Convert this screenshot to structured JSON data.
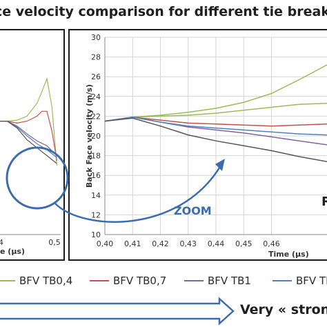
{
  "title": "ce velocity comparison for different tie break",
  "zoom_label": "ZOOM",
  "cut_label": "R",
  "strong_label": "Very « strong",
  "left_xlabel": "e (µs)",
  "right_xlabel": "Time (µs)",
  "colors": {
    "tb04": "#9bbb59",
    "tb07": "#c0504d",
    "tb1": "#8064a2",
    "tb_blue": "#4f81bd",
    "dark": "#555555",
    "arrow": "#3b6cb0"
  },
  "legend": [
    {
      "label": "BFV TB0,4",
      "color": "#9bbb59"
    },
    {
      "label": "BFV TB0,7",
      "color": "#c0504d"
    },
    {
      "label": "BFV TB1",
      "color": "#8064a2"
    },
    {
      "label": "BFV TB",
      "color": "#4f81bd"
    }
  ],
  "chart_data": [
    {
      "type": "line",
      "panel": "left",
      "xlabel": "e (µs)",
      "xtick_labels": [
        "4",
        "0,5"
      ],
      "xlim": [
        0.38,
        0.505
      ],
      "ylim": [
        10,
        30
      ],
      "series": [
        {
          "name": "BFV TB0,4",
          "x": [
            0.38,
            0.4,
            0.42,
            0.44,
            0.46,
            0.47,
            0.48,
            0.49,
            0.5
          ],
          "y": [
            21.5,
            21.5,
            21.6,
            22.0,
            23.3,
            24.5,
            25.8,
            23.0,
            17.0
          ]
        },
        {
          "name": "BFV TB0,7",
          "x": [
            0.38,
            0.4,
            0.42,
            0.44,
            0.46,
            0.47,
            0.48,
            0.49,
            0.5
          ],
          "y": [
            21.5,
            21.5,
            21.3,
            21.5,
            22.0,
            22.5,
            22.5,
            20.5,
            17.5
          ]
        },
        {
          "name": "BFV TB1",
          "x": [
            0.38,
            0.4,
            0.42,
            0.44,
            0.46,
            0.48,
            0.5
          ],
          "y": [
            21.5,
            21.5,
            21.0,
            20.2,
            19.5,
            19.0,
            18.0
          ]
        },
        {
          "name": "BFV TB",
          "x": [
            0.38,
            0.4,
            0.42,
            0.44,
            0.46,
            0.48,
            0.5
          ],
          "y": [
            21.5,
            21.5,
            20.9,
            20.0,
            19.2,
            18.6,
            17.8
          ]
        },
        {
          "name": "",
          "x": [
            0.38,
            0.4,
            0.42,
            0.44,
            0.46,
            0.48,
            0.5
          ],
          "y": [
            21.5,
            21.5,
            20.8,
            19.6,
            18.8,
            18.0,
            17.2
          ]
        }
      ]
    },
    {
      "type": "line",
      "panel": "right",
      "xlabel": "Time (µs)",
      "ylabel": "Back Face velocity (m/s)",
      "xlim": [
        0.4,
        0.48
      ],
      "ylim": [
        10,
        30
      ],
      "xticks": [
        0.4,
        0.41,
        0.42,
        0.43,
        0.44,
        0.45,
        0.46
      ],
      "xtick_labels": [
        "0,40",
        "0,41",
        "0,42",
        "0,43",
        "0,44",
        "0,45",
        "0,46"
      ],
      "yticks": [
        10,
        12,
        14,
        16,
        18,
        20,
        22,
        24,
        26,
        28,
        30
      ],
      "grid": true,
      "series": [
        {
          "name": "BFV TB0,4",
          "x": [
            0.4,
            0.41,
            0.42,
            0.43,
            0.44,
            0.45,
            0.46,
            0.47,
            0.48
          ],
          "y": [
            21.5,
            21.9,
            22.1,
            22.4,
            22.8,
            23.4,
            24.3,
            25.7,
            27.2
          ]
        },
        {
          "name": "",
          "x": [
            0.4,
            0.41,
            0.42,
            0.43,
            0.44,
            0.45,
            0.46,
            0.47,
            0.48
          ],
          "y": [
            21.5,
            21.9,
            22.0,
            22.1,
            22.3,
            22.6,
            22.9,
            23.2,
            23.3
          ]
        },
        {
          "name": "BFV TB0,7",
          "x": [
            0.4,
            0.41,
            0.42,
            0.43,
            0.44,
            0.45,
            0.46,
            0.47,
            0.48
          ],
          "y": [
            21.5,
            21.9,
            21.6,
            21.3,
            21.2,
            21.1,
            21.0,
            21.1,
            21.2
          ]
        },
        {
          "name": "BFV TB1",
          "x": [
            0.4,
            0.41,
            0.42,
            0.43,
            0.44,
            0.45,
            0.46,
            0.47,
            0.48
          ],
          "y": [
            21.5,
            21.9,
            21.4,
            20.9,
            20.6,
            20.3,
            19.9,
            19.5,
            19.1
          ]
        },
        {
          "name": "BFV TB",
          "x": [
            0.4,
            0.41,
            0.42,
            0.43,
            0.44,
            0.45,
            0.46,
            0.47,
            0.48
          ],
          "y": [
            21.5,
            21.9,
            21.4,
            21.0,
            20.8,
            20.6,
            20.4,
            20.2,
            20.1
          ]
        },
        {
          "name": "",
          "x": [
            0.4,
            0.41,
            0.42,
            0.43,
            0.44,
            0.45,
            0.46,
            0.47,
            0.48
          ],
          "y": [
            21.5,
            21.8,
            21.0,
            20.1,
            19.5,
            19.0,
            18.5,
            17.9,
            17.4
          ]
        }
      ]
    }
  ]
}
